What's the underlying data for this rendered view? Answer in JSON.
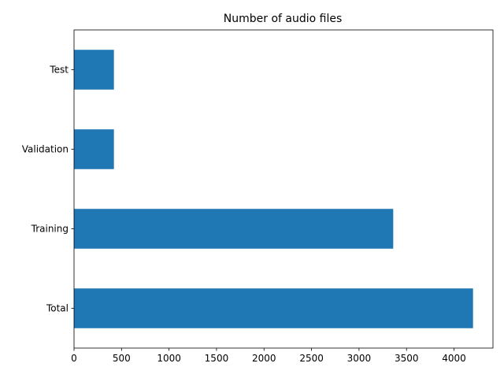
{
  "chart_data": {
    "type": "bar",
    "orientation": "horizontal",
    "title": "Number of audio files",
    "xlabel": "",
    "ylabel": "",
    "categories": [
      "Total",
      "Training",
      "Validation",
      "Test"
    ],
    "values": [
      4200,
      3360,
      420,
      420
    ],
    "xlim": [
      0,
      4410
    ],
    "xticks": [
      0,
      500,
      1000,
      1500,
      2000,
      2500,
      3000,
      3500,
      4000
    ],
    "bar_color": "#1f77b4",
    "grid": false,
    "legend": "none"
  }
}
